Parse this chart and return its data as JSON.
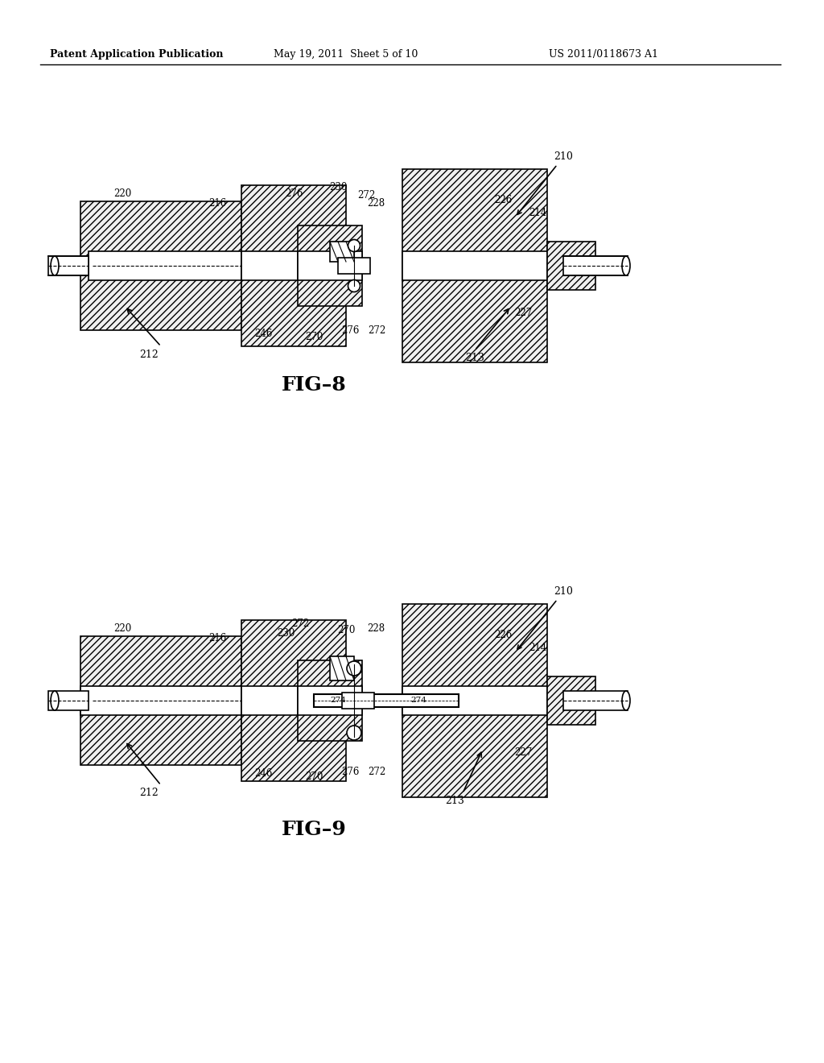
{
  "bg_color": "#ffffff",
  "text_color": "#000000",
  "header_left": "Patent Application Publication",
  "header_center": "May 19, 2011  Sheet 5 of 10",
  "header_right": "US 2011/0118673 A1",
  "fig8_label": "FIG–8",
  "fig9_label": "FIG–9",
  "hatch_pattern": "////",
  "line_color": "#000000",
  "hatch_color": "#000000"
}
